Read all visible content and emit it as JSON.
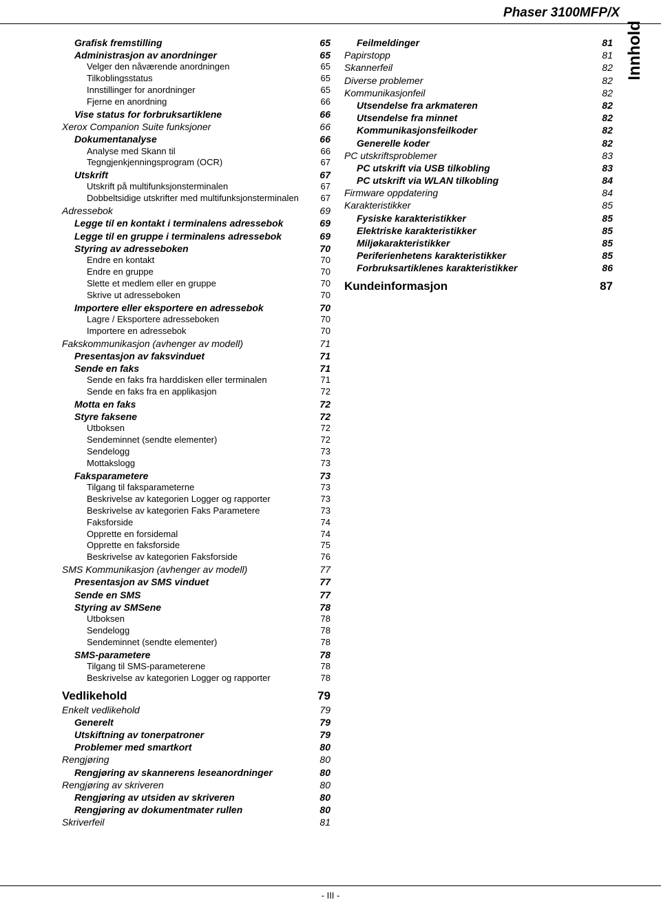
{
  "header": "Phaser 3100MFP/X",
  "sideLabel": "Innhold",
  "footer": "- III -",
  "left": [
    {
      "lvl": 2,
      "t": "Grafisk fremstilling",
      "p": "65"
    },
    {
      "lvl": 2,
      "t": "Administrasjon av anordninger",
      "p": "65"
    },
    {
      "lvl": 3,
      "t": "Velger den nåværende anordningen",
      "p": "65"
    },
    {
      "lvl": 3,
      "t": "Tilkoblingsstatus",
      "p": "65"
    },
    {
      "lvl": 3,
      "t": "Innstillinger for anordninger",
      "p": "65"
    },
    {
      "lvl": 3,
      "t": "Fjerne en anordning",
      "p": "66"
    },
    {
      "lvl": 2,
      "t": "Vise status for forbruksartiklene",
      "p": "66"
    },
    {
      "lvl": 1,
      "t": "Xerox Companion Suite funksjoner",
      "p": "66"
    },
    {
      "lvl": 2,
      "t": "Dokumentanalyse",
      "p": "66"
    },
    {
      "lvl": 3,
      "t": "Analyse med Skann til",
      "p": "66"
    },
    {
      "lvl": 3,
      "t": "Tegngjenkjenningsprogram (OCR)",
      "p": "67"
    },
    {
      "lvl": 2,
      "t": "Utskrift",
      "p": "67"
    },
    {
      "lvl": 3,
      "t": "Utskrift på multifunksjonsterminalen",
      "p": "67"
    },
    {
      "lvl": 3,
      "t": "Dobbeltsidige utskrifter med multifunksjonsterminalen",
      "p": "67"
    },
    {
      "lvl": 1,
      "t": "Adressebok",
      "p": "69"
    },
    {
      "lvl": 2,
      "t": "Legge til en kontakt i terminalens adressebok",
      "p": "69"
    },
    {
      "lvl": 2,
      "t": "Legge til en gruppe i terminalens adressebok",
      "p": "69"
    },
    {
      "lvl": 2,
      "t": "Styring av adresseboken",
      "p": "70"
    },
    {
      "lvl": 3,
      "t": "Endre en kontakt",
      "p": "70"
    },
    {
      "lvl": 3,
      "t": "Endre en gruppe",
      "p": "70"
    },
    {
      "lvl": 3,
      "t": "Slette et medlem eller en gruppe",
      "p": "70"
    },
    {
      "lvl": 3,
      "t": "Skrive ut adresseboken",
      "p": "70"
    },
    {
      "lvl": 2,
      "t": "Importere eller eksportere en adressebok",
      "p": "70"
    },
    {
      "lvl": 3,
      "t": "Lagre / Eksportere adresseboken",
      "p": "70"
    },
    {
      "lvl": 3,
      "t": "Importere en adressebok",
      "p": "70"
    },
    {
      "lvl": 1,
      "t": "Fakskommunikasjon (avhenger av modell)",
      "p": "71"
    },
    {
      "lvl": 2,
      "t": "Presentasjon av faksvinduet",
      "p": "71"
    },
    {
      "lvl": 2,
      "t": "Sende en faks",
      "p": "71"
    },
    {
      "lvl": 3,
      "t": "Sende en faks fra harddisken eller terminalen",
      "p": "71"
    },
    {
      "lvl": 3,
      "t": "Sende en faks fra en applikasjon",
      "p": "72"
    },
    {
      "lvl": 2,
      "t": "Motta en faks",
      "p": "72"
    },
    {
      "lvl": 2,
      "t": "Styre faksene",
      "p": "72"
    },
    {
      "lvl": 3,
      "t": "Utboksen",
      "p": "72"
    },
    {
      "lvl": 3,
      "t": "Sendeminnet (sendte elementer)",
      "p": "72"
    },
    {
      "lvl": 3,
      "t": "Sendelogg",
      "p": "73"
    },
    {
      "lvl": 3,
      "t": "Mottakslogg",
      "p": "73"
    },
    {
      "lvl": 2,
      "t": "Faksparametere",
      "p": "73"
    },
    {
      "lvl": 3,
      "t": "Tilgang til faksparameterne",
      "p": "73"
    },
    {
      "lvl": 3,
      "t": "Beskrivelse av kategorien Logger og rapporter",
      "p": "73"
    },
    {
      "lvl": 3,
      "t": "Beskrivelse av kategorien Faks Parametere",
      "p": "73"
    },
    {
      "lvl": 3,
      "t": "Faksforside",
      "p": "74"
    },
    {
      "lvl": 3,
      "t": "Opprette en forsidemal",
      "p": "74"
    },
    {
      "lvl": 3,
      "t": "Opprette en faksforside",
      "p": "75"
    },
    {
      "lvl": 3,
      "t": "Beskrivelse av kategorien Faksforside",
      "p": "76"
    },
    {
      "lvl": 1,
      "t": "SMS Kommunikasjon (avhenger av modell)",
      "p": "77"
    },
    {
      "lvl": 2,
      "t": "Presentasjon av SMS vinduet",
      "p": "77"
    },
    {
      "lvl": 2,
      "t": "Sende en SMS",
      "p": "77"
    },
    {
      "lvl": 2,
      "t": "Styring av SMSene",
      "p": "78"
    },
    {
      "lvl": 3,
      "t": "Utboksen",
      "p": "78"
    },
    {
      "lvl": 3,
      "t": "Sendelogg",
      "p": "78"
    },
    {
      "lvl": 3,
      "t": "Sendeminnet (sendte elementer)",
      "p": "78"
    },
    {
      "lvl": 2,
      "t": "SMS-parametere",
      "p": "78"
    },
    {
      "lvl": 3,
      "t": "Tilgang til SMS-parameterene",
      "p": "78"
    },
    {
      "lvl": 3,
      "t": "Beskrivelse av kategorien Logger og rapporter",
      "p": "78"
    },
    {
      "lvl": 0,
      "t": "Vedlikehold",
      "p": "79"
    },
    {
      "lvl": 1,
      "t": "Enkelt vedlikehold",
      "p": "79"
    },
    {
      "lvl": 2,
      "t": "Generelt",
      "p": "79"
    },
    {
      "lvl": 2,
      "t": "Utskiftning av tonerpatroner",
      "p": "79"
    },
    {
      "lvl": 2,
      "t": "Problemer med smartkort",
      "p": "80"
    },
    {
      "lvl": 1,
      "t": "Rengjøring",
      "p": "80"
    },
    {
      "lvl": 2,
      "t": "Rengjøring av skannerens leseanordninger",
      "p": "80"
    },
    {
      "lvl": 1,
      "t": "Rengjøring av skriveren",
      "p": "80"
    },
    {
      "lvl": 2,
      "t": "Rengjøring av utsiden av skriveren",
      "p": "80"
    },
    {
      "lvl": 2,
      "t": "Rengjøring av dokumentmater rullen",
      "p": "80"
    },
    {
      "lvl": 1,
      "t": "Skriverfeil",
      "p": "81"
    }
  ],
  "right": [
    {
      "lvl": 2,
      "t": "Feilmeldinger",
      "p": "81"
    },
    {
      "lvl": 1,
      "t": "Papirstopp",
      "p": "81"
    },
    {
      "lvl": 1,
      "t": "Skannerfeil",
      "p": "82"
    },
    {
      "lvl": 1,
      "t": "Diverse problemer",
      "p": "82"
    },
    {
      "lvl": 1,
      "t": "Kommunikasjonfeil",
      "p": "82"
    },
    {
      "lvl": 2,
      "t": "Utsendelse fra arkmateren",
      "p": "82"
    },
    {
      "lvl": 2,
      "t": "Utsendelse fra minnet",
      "p": "82"
    },
    {
      "lvl": 2,
      "t": "Kommunikasjonsfeilkoder",
      "p": "82"
    },
    {
      "lvl": 2,
      "t": "Generelle koder",
      "p": "82"
    },
    {
      "lvl": 1,
      "t": "PC utskriftsproblemer",
      "p": "83"
    },
    {
      "lvl": 2,
      "t": "PC utskrift via USB tilkobling",
      "p": "83"
    },
    {
      "lvl": 2,
      "t": "PC utskrift via WLAN tilkobling",
      "p": "84"
    },
    {
      "lvl": 1,
      "t": "Firmware oppdatering",
      "p": "84"
    },
    {
      "lvl": 1,
      "t": "Karakteristikker",
      "p": "85"
    },
    {
      "lvl": 2,
      "t": "Fysiske karakteristikker",
      "p": "85"
    },
    {
      "lvl": 2,
      "t": "Elektriske karakteristikker",
      "p": "85"
    },
    {
      "lvl": 2,
      "t": "Miljøkarakteristikker",
      "p": "85"
    },
    {
      "lvl": 2,
      "t": "Periferienhetens karakteristikker",
      "p": "85"
    },
    {
      "lvl": 2,
      "t": "Forbruksartiklenes karakteristikker",
      "p": "86"
    },
    {
      "lvl": 0,
      "t": "Kundeinformasjon",
      "p": "87"
    }
  ]
}
